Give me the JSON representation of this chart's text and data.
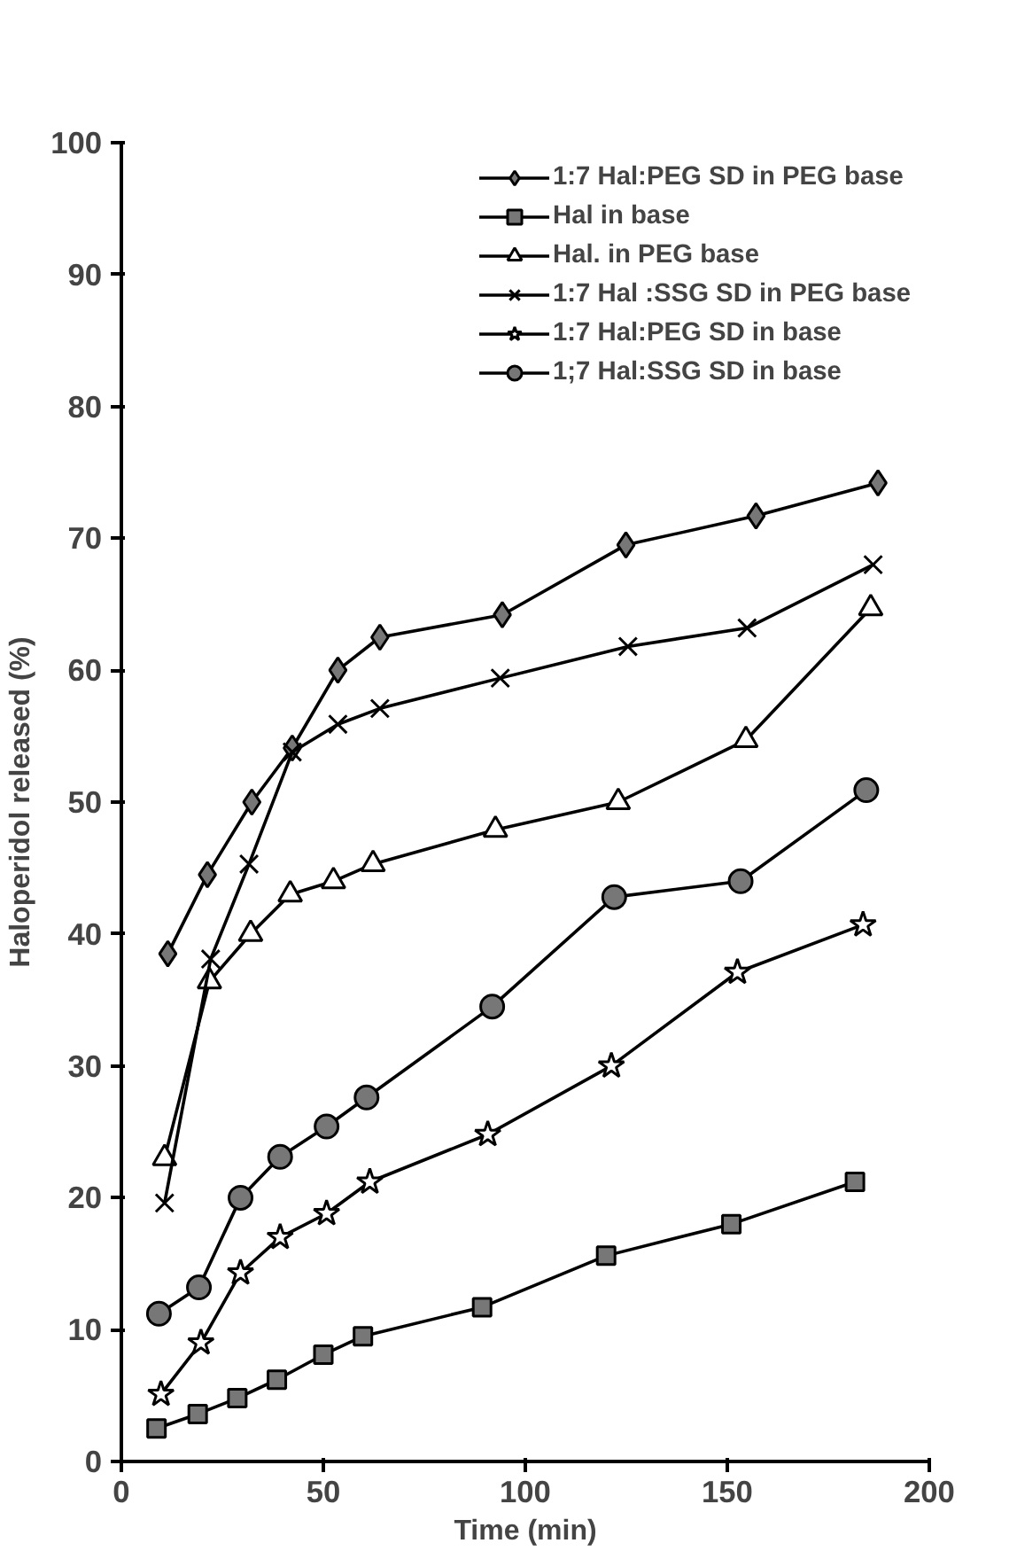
{
  "chart_data": {
    "type": "line",
    "xlabel": "Time (min)",
    "ylabel": "Haloperidol released (%)",
    "xlim": [
      0,
      200
    ],
    "xticks": [
      0,
      50,
      100,
      150,
      200
    ],
    "ylim": [
      0,
      100
    ],
    "yticks": [
      0,
      10,
      20,
      30,
      40,
      50,
      60,
      70,
      80,
      90,
      100
    ],
    "grid": false,
    "legend": "top right",
    "line_style": "solid",
    "series": [
      {
        "name": "1:7 Hal:PEG SD in PEG base",
        "color": "#000000",
        "marker": "diamond",
        "x": [
          11.5,
          21.3,
          32.3,
          42.3,
          53.6,
          64,
          94.3,
          124.9,
          157.1,
          187.3
        ],
        "values": [
          38.5,
          44.5,
          50,
          54.1,
          60,
          62.5,
          64.2,
          69.5,
          71.7,
          74.2
        ]
      },
      {
        "name": "Hal in base",
        "color": "#000000",
        "marker": "square",
        "x": [
          8.7,
          18.9,
          28.7,
          38.5,
          50,
          59.8,
          89.3,
          120,
          151,
          181.6
        ],
        "values": [
          2.5,
          3.6,
          4.8,
          6.2,
          8.1,
          9.5,
          11.7,
          15.6,
          18,
          21.2
        ]
      },
      {
        "name": "Hal. in PEG base",
        "color": "#000000",
        "marker": "triangle",
        "x": [
          10.7,
          21.8,
          32,
          41.8,
          52.5,
          62.3,
          92.6,
          123,
          154.6,
          185.5
        ],
        "values": [
          23,
          36.4,
          40,
          43,
          44,
          45.3,
          47.9,
          50,
          54.7,
          64.7
        ]
      },
      {
        "name": "1:7 Hal :SSG SD in PEG base",
        "color": "#000000",
        "marker": "cross",
        "x": [
          10.7,
          22.1,
          31.6,
          42.3,
          53.6,
          64,
          93.8,
          125.4,
          154.9,
          186.1
        ],
        "values": [
          19.6,
          38.1,
          45.3,
          53.8,
          55.9,
          57.1,
          59.4,
          61.8,
          63.2,
          68
        ]
      },
      {
        "name": "1:7 Hal:PEG SD in base",
        "color": "#000000",
        "marker": "star",
        "x": [
          9.8,
          19.7,
          29.5,
          39.3,
          50.8,
          61.5,
          90.7,
          121.3,
          152.5,
          183.6
        ],
        "values": [
          5.1,
          9,
          14.3,
          17,
          18.8,
          21.2,
          24.8,
          30,
          37.1,
          40.7
        ]
      },
      {
        "name": "1;7 Hal:SSG SD in base",
        "color": "#000000",
        "marker": "circle",
        "x": [
          9.3,
          19.2,
          29.5,
          39.3,
          50.8,
          60.7,
          91.8,
          122,
          153.3,
          184.4
        ],
        "values": [
          11.2,
          13.2,
          20,
          23.1,
          25.4,
          27.6,
          34.5,
          42.8,
          44,
          50.9
        ]
      }
    ]
  }
}
